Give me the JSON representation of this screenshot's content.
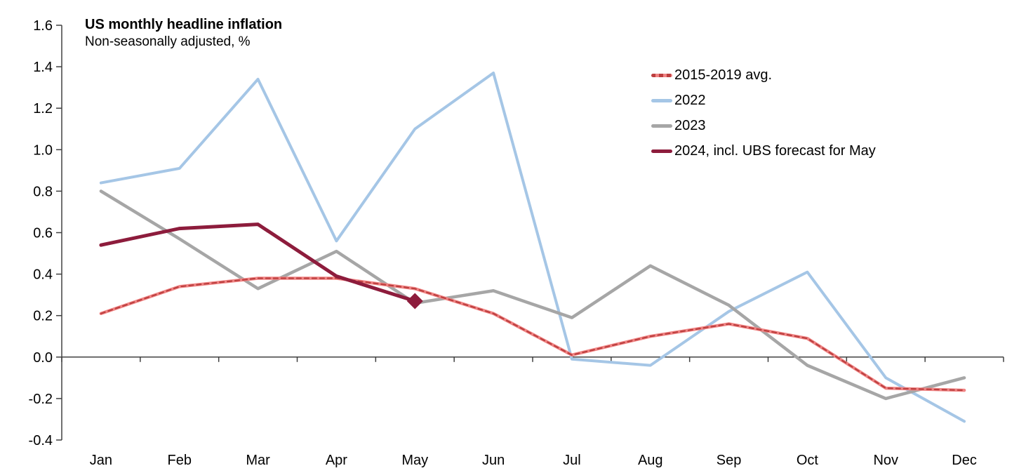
{
  "chart_data": {
    "type": "line",
    "title": "US monthly headline inflation",
    "subtitle": "Non-seasonally adjusted, %",
    "categories": [
      "Jan",
      "Feb",
      "Mar",
      "Apr",
      "May",
      "Jun",
      "Jul",
      "Aug",
      "Sep",
      "Oct",
      "Nov",
      "Dec"
    ],
    "series": [
      {
        "name": "2015-2019 avg.",
        "color": "#f08484",
        "dash_overlay": "#bc3f3f",
        "values": [
          0.21,
          0.34,
          0.38,
          0.38,
          0.33,
          0.21,
          0.01,
          0.1,
          0.16,
          0.09,
          -0.15,
          -0.16
        ]
      },
      {
        "name": "2022",
        "color": "#a5c6e6",
        "values": [
          0.84,
          0.91,
          1.34,
          0.56,
          1.1,
          1.37,
          -0.01,
          -0.04,
          0.22,
          0.41,
          -0.1,
          -0.31
        ]
      },
      {
        "name": "2023",
        "color": "#a6a6a6",
        "values": [
          0.8,
          0.57,
          0.33,
          0.51,
          0.26,
          0.32,
          0.19,
          0.44,
          0.25,
          -0.04,
          -0.2,
          -0.1
        ]
      },
      {
        "name": "2024, incl. UBS forecast for May",
        "color": "#8d1c3c",
        "marker": "diamond-last",
        "values": [
          0.54,
          0.62,
          0.64,
          0.39,
          0.27,
          null,
          null,
          null,
          null,
          null,
          null,
          null
        ]
      }
    ],
    "ylim": [
      -0.4,
      1.6
    ],
    "ytick_step": 0.2,
    "ytick_labels": [
      "-0.4",
      "-0.2",
      "0.0",
      "0.2",
      "0.4",
      "0.6",
      "0.8",
      "1.0",
      "1.2",
      "1.4",
      "1.6"
    ],
    "grid": false,
    "legend_position": "upper-right",
    "axis_color": "#404040"
  }
}
